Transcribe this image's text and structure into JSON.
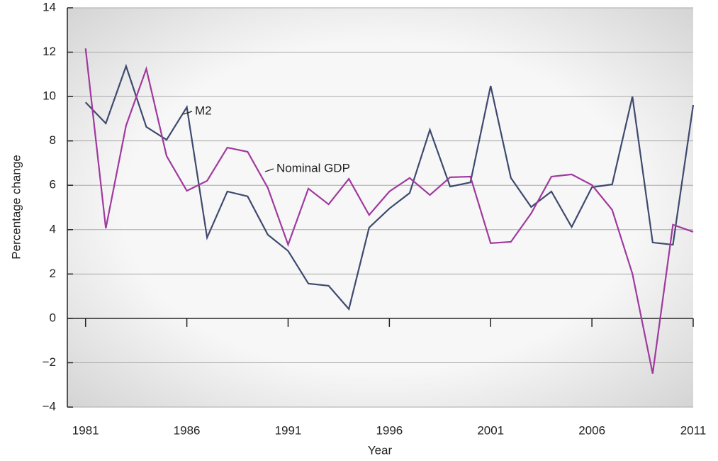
{
  "chart_data": {
    "type": "line",
    "xlabel": "Year",
    "ylabel": "Percentage change",
    "x": [
      1981,
      1982,
      1983,
      1984,
      1985,
      1986,
      1987,
      1988,
      1989,
      1990,
      1991,
      1992,
      1993,
      1994,
      1995,
      1996,
      1997,
      1998,
      1999,
      2000,
      2001,
      2002,
      2003,
      2004,
      2005,
      2006,
      2007,
      2008,
      2009,
      2010,
      2011
    ],
    "series": [
      {
        "name": "M2",
        "color": "#3e4a6e",
        "values": [
          9.74,
          8.79,
          11.37,
          8.63,
          8.05,
          9.52,
          3.64,
          5.72,
          5.5,
          3.77,
          3.04,
          1.57,
          1.47,
          0.42,
          4.09,
          4.95,
          5.65,
          8.5,
          5.94,
          6.13,
          10.48,
          6.33,
          5.02,
          5.72,
          4.12,
          5.91,
          6.04,
          10.0,
          3.42,
          3.32,
          9.62
        ]
      },
      {
        "name": "Nominal GDP",
        "color": "#a0399e",
        "values": [
          12.17,
          4.06,
          8.69,
          11.25,
          7.32,
          5.75,
          6.2,
          7.7,
          7.51,
          5.88,
          3.32,
          5.85,
          5.14,
          6.29,
          4.66,
          5.72,
          6.33,
          5.56,
          6.36,
          6.39,
          3.39,
          3.45,
          4.73,
          6.39,
          6.49,
          6.01,
          4.89,
          2.01,
          -2.49,
          4.22,
          3.9
        ]
      }
    ],
    "xlim": [
      1980.1,
      2011
    ],
    "xticks": [
      1981,
      1986,
      1991,
      1996,
      2001,
      2006,
      2011
    ],
    "ylim": [
      -4,
      14
    ],
    "yticks": [
      {
        "value": -4,
        "label": "−4"
      },
      {
        "value": -2,
        "label": "−2"
      },
      0,
      2,
      4,
      6,
      8,
      10,
      12,
      14
    ],
    "grid": true
  }
}
